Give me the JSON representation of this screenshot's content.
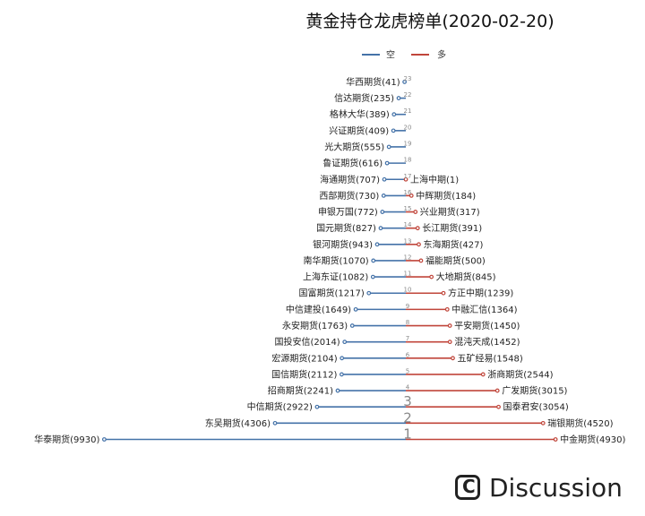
{
  "chart_data": {
    "type": "line",
    "title": "黄金持仓龙虎榜单(2020-02-20)",
    "colors": {
      "short": "#4472a8",
      "long": "#c0453a",
      "rank_top": [
        "#c0453a",
        "#d47b3f",
        "#e0a43a"
      ]
    },
    "series": [
      {
        "name": "空",
        "key": "short"
      },
      {
        "name": "多",
        "key": "long"
      }
    ],
    "rows": [
      {
        "rank": "1",
        "short": {
          "label": "华泰期货(9930)",
          "value": 9930
        },
        "long": {
          "label": "中金期货(4930)",
          "value": 4930
        }
      },
      {
        "rank": "2",
        "short": {
          "label": "东吴期货(4306)",
          "value": 4306
        },
        "long": {
          "label": "瑞银期货(4520)",
          "value": 4520
        }
      },
      {
        "rank": "3",
        "short": {
          "label": "中信期货(2922)",
          "value": 2922
        },
        "long": {
          "label": "国泰君安(3054)",
          "value": 3054
        }
      },
      {
        "rank": "4",
        "short": {
          "label": "招商期货(2241)",
          "value": 2241
        },
        "long": {
          "label": "广发期货(3015)",
          "value": 3015
        }
      },
      {
        "rank": "5",
        "short": {
          "label": "国信期货(2112)",
          "value": 2112
        },
        "long": {
          "label": "浙商期货(2544)",
          "value": 2544
        }
      },
      {
        "rank": "6",
        "short": {
          "label": "宏源期货(2104)",
          "value": 2104
        },
        "long": {
          "label": "五矿经易(1548)",
          "value": 1548
        }
      },
      {
        "rank": "7",
        "short": {
          "label": "国投安信(2014)",
          "value": 2014
        },
        "long": {
          "label": "混沌天成(1452)",
          "value": 1452
        }
      },
      {
        "rank": "8",
        "short": {
          "label": "永安期货(1763)",
          "value": 1763
        },
        "long": {
          "label": "平安期货(1450)",
          "value": 1450
        }
      },
      {
        "rank": "9",
        "short": {
          "label": "中信建投(1649)",
          "value": 1649
        },
        "long": {
          "label": "中融汇信(1364)",
          "value": 1364
        }
      },
      {
        "rank": "10",
        "short": {
          "label": "国富期货(1217)",
          "value": 1217
        },
        "long": {
          "label": "方正中期(1239)",
          "value": 1239
        }
      },
      {
        "rank": "11",
        "short": {
          "label": "上海东证(1082)",
          "value": 1082
        },
        "long": {
          "label": "大地期货(845)",
          "value": 845
        }
      },
      {
        "rank": "12",
        "short": {
          "label": "南华期货(1070)",
          "value": 1070
        },
        "long": {
          "label": "福能期货(500)",
          "value": 500
        }
      },
      {
        "rank": "13",
        "short": {
          "label": "银河期货(943)",
          "value": 943
        },
        "long": {
          "label": "东海期货(427)",
          "value": 427
        }
      },
      {
        "rank": "14",
        "short": {
          "label": "国元期货(827)",
          "value": 827
        },
        "long": {
          "label": "长江期货(391)",
          "value": 391
        }
      },
      {
        "rank": "15",
        "short": {
          "label": "申银万国(772)",
          "value": 772
        },
        "long": {
          "label": "兴业期货(317)",
          "value": 317
        }
      },
      {
        "rank": "16",
        "short": {
          "label": "西部期货(730)",
          "value": 730
        },
        "long": {
          "label": "中辉期货(184)",
          "value": 184
        }
      },
      {
        "rank": "17",
        "short": {
          "label": "海通期货(707)",
          "value": 707
        },
        "long": {
          "label": "上海中期(1)",
          "value": 1
        }
      },
      {
        "rank": "18",
        "short": {
          "label": "鲁证期货(616)",
          "value": 616
        },
        "long": null
      },
      {
        "rank": "19",
        "short": {
          "label": "光大期货(555)",
          "value": 555
        },
        "long": null
      },
      {
        "rank": "20",
        "short": {
          "label": "兴证期货(409)",
          "value": 409
        },
        "long": null
      },
      {
        "rank": "21",
        "short": {
          "label": "格林大华(389)",
          "value": 389
        },
        "long": null
      },
      {
        "rank": "22",
        "short": {
          "label": "信达期货(235)",
          "value": 235
        },
        "long": null
      },
      {
        "rank": "23",
        "short": {
          "label": "华西期货(41)",
          "value": 41
        },
        "long": null
      }
    ]
  },
  "watermark": {
    "text": "Discussion",
    "icon": "c-logo-icon",
    "glyph": "C"
  }
}
